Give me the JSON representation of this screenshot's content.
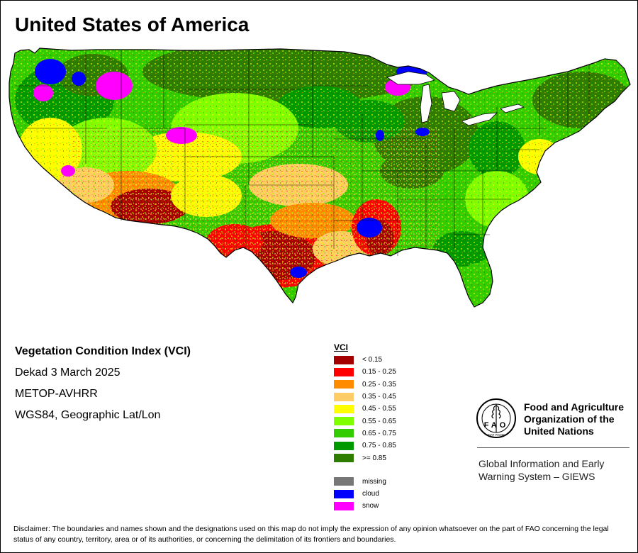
{
  "title": "United States of America",
  "info": {
    "index_name": "Vegetation Condition Index (VCI)",
    "period": "Dekad 3 March 2025",
    "sensor": "METOP-AVHRR",
    "projection": "WGS84, Geographic Lat/Lon"
  },
  "legend": {
    "title": "VCI",
    "classes": [
      {
        "label": "< 0.15",
        "color": "#a50000"
      },
      {
        "label": "0.15 - 0.25",
        "color": "#ff0000"
      },
      {
        "label": "0.25 - 0.35",
        "color": "#ff8c00"
      },
      {
        "label": "0.35 - 0.45",
        "color": "#ffcc66"
      },
      {
        "label": "0.45 - 0.55",
        "color": "#ffff00"
      },
      {
        "label": "0.55 - 0.65",
        "color": "#80ff00"
      },
      {
        "label": "0.65 - 0.75",
        "color": "#33cc00"
      },
      {
        "label": "0.75 - 0.85",
        "color": "#009900"
      },
      {
        "label": ">= 0.85",
        "color": "#2e7d00"
      }
    ],
    "extra": [
      {
        "label": "missing",
        "color": "#777777"
      },
      {
        "label": "cloud",
        "color": "#0000ff"
      },
      {
        "label": "snow",
        "color": "#ff00ff"
      }
    ]
  },
  "fao": {
    "org_name": "Food and Agriculture Organization of the United Nations",
    "emblem_letters": "FAO",
    "emblem_motto": "FIAT PANIS",
    "giews": "Global Information and Early Warning System – GIEWS"
  },
  "disclaimer": "Disclaimer: The boundaries and names shown and the designations used on this map do not imply the expression of any opinion whatsoever on the part of FAO concerning the legal status of any country, territory, area or of its authorities, or concerning the delimitation of its frontiers and boundaries."
}
